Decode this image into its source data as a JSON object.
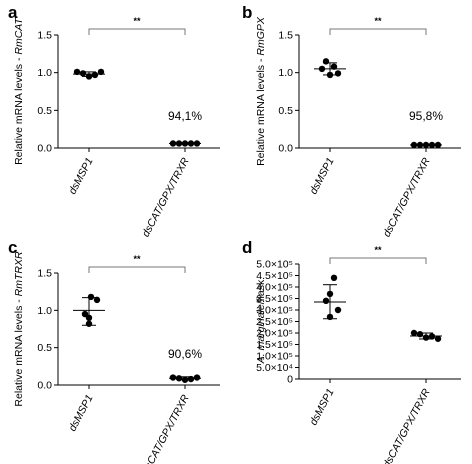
{
  "chart_data": [
    {
      "panel": "a",
      "type": "scatter",
      "categories": [
        "dsMSP1",
        "dsCAT/GPX/TRXR"
      ],
      "ylabel_prefix": "Relative mRNA levels - ",
      "ylabel_gene": "RmCAT",
      "ylim": [
        0,
        1.5
      ],
      "yticks": [
        "0.0",
        "0.5",
        "1.0",
        "1.5"
      ],
      "yticks_values": [
        0,
        0.5,
        1.0,
        1.5
      ],
      "points": [
        [
          1.01,
          0.99,
          0.95,
          0.97,
          1.01
        ],
        [
          0.06,
          0.06,
          0.06,
          0.06,
          0.06
        ]
      ],
      "error_bars": [
        {
          "mean": 0.98,
          "low": 0.95,
          "high": 1.01
        },
        {
          "mean": 0.06,
          "low": 0.05,
          "high": 0.07
        }
      ],
      "annotation": "94,1%",
      "significance": "**"
    },
    {
      "panel": "b",
      "type": "scatter",
      "categories": [
        "dsMSP1",
        "dsCAT/GPX/TRXR"
      ],
      "ylabel_prefix": "Relative mRNA levels - ",
      "ylabel_gene": "RmGPX",
      "ylim": [
        0,
        1.5
      ],
      "yticks": [
        "0.0",
        "0.5",
        "1.0",
        "1.5"
      ],
      "yticks_values": [
        0,
        0.5,
        1.0,
        1.5
      ],
      "points": [
        [
          1.15,
          1.08,
          1.05,
          0.97,
          0.99
        ],
        [
          0.04,
          0.04,
          0.04,
          0.04,
          0.04
        ]
      ],
      "error_bars": [
        {
          "mean": 1.05,
          "low": 0.97,
          "high": 1.13
        },
        {
          "mean": 0.04,
          "low": 0.035,
          "high": 0.045
        }
      ],
      "annotation": "95,8%",
      "significance": "**"
    },
    {
      "panel": "c",
      "type": "scatter",
      "categories": [
        "dsMSP1",
        "dsCAT/GPX/TRXR"
      ],
      "ylabel_prefix": "Relative mRNA levels - ",
      "ylabel_gene": "RmTRXR",
      "ylim": [
        0,
        1.5
      ],
      "yticks": [
        "0.0",
        "0.5",
        "1.0",
        "1.5"
      ],
      "yticks_values": [
        0,
        0.5,
        1.0,
        1.5
      ],
      "points": [
        [
          1.18,
          1.14,
          0.95,
          0.82,
          0.9
        ],
        [
          0.1,
          0.09,
          0.07,
          0.08,
          0.1
        ]
      ],
      "error_bars": [
        {
          "mean": 1.0,
          "low": 0.8,
          "high": 1.17
        },
        {
          "mean": 0.09,
          "low": 0.07,
          "high": 0.11
        }
      ],
      "annotation": "90,6%",
      "significance": "**"
    },
    {
      "panel": "d",
      "type": "scatter",
      "categories": [
        "dsMSP1",
        "dsCAT/GPX/TRXR"
      ],
      "ylabel_prefix": "",
      "ylabel_gene": "A. marginale",
      "ylabel_suffix": "/flask",
      "ylim": [
        0,
        500000
      ],
      "yticks": [
        "0",
        "5.0×10⁴",
        "1.0×10⁵",
        "1.5×10⁵",
        "2.0×10⁵",
        "2.5×10⁵",
        "3.0×10⁵",
        "3.5×10⁵",
        "4.0×10⁵",
        "4.5×10⁵",
        "5.0×10⁵"
      ],
      "yticks_values": [
        0,
        50000,
        100000,
        150000,
        200000,
        250000,
        300000,
        350000,
        400000,
        450000,
        500000
      ],
      "points": [
        [
          440000,
          370000,
          340000,
          300000,
          270000
        ],
        [
          200000,
          195000,
          180000,
          185000,
          175000
        ]
      ],
      "error_bars": [
        {
          "mean": 335000,
          "low": 262000,
          "high": 410000
        },
        {
          "mean": 187000,
          "low": 174000,
          "high": 200000
        }
      ],
      "annotation": "",
      "significance": "**"
    }
  ]
}
